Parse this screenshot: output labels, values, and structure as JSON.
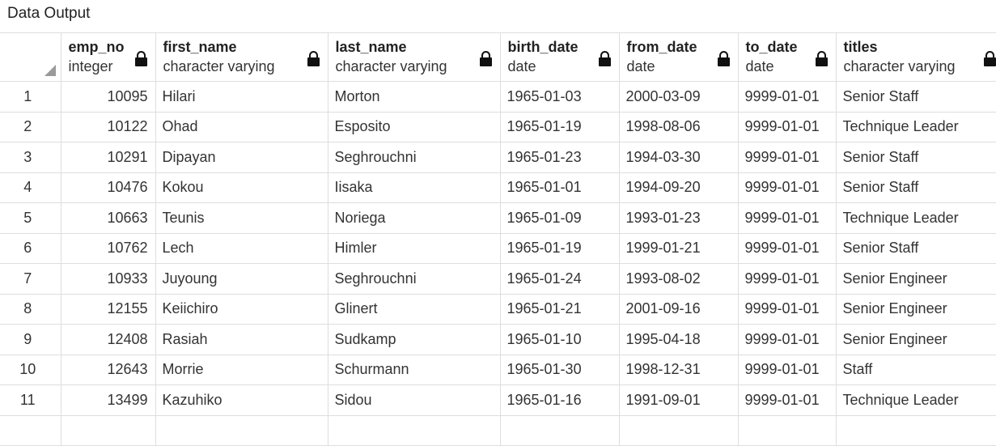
{
  "panel": {
    "tab_title": "Data Output"
  },
  "columns": [
    {
      "name": "emp_no",
      "type": "integer",
      "icon": "lock-icon"
    },
    {
      "name": "first_name",
      "type": "character varying",
      "icon": "lock-icon"
    },
    {
      "name": "last_name",
      "type": "character varying",
      "icon": "lock-icon"
    },
    {
      "name": "birth_date",
      "type": "date",
      "icon": "lock-icon"
    },
    {
      "name": "from_date",
      "type": "date",
      "icon": "lock-icon"
    },
    {
      "name": "to_date",
      "type": "date",
      "icon": "lock-icon"
    },
    {
      "name": "titles",
      "type": "character varying",
      "icon": "lock-icon"
    }
  ],
  "rows": [
    {
      "n": "1",
      "emp_no": "10095",
      "first_name": "Hilari",
      "last_name": "Morton",
      "birth_date": "1965-01-03",
      "from_date": "2000-03-09",
      "to_date": "9999-01-01",
      "titles": "Senior Staff"
    },
    {
      "n": "2",
      "emp_no": "10122",
      "first_name": "Ohad",
      "last_name": "Esposito",
      "birth_date": "1965-01-19",
      "from_date": "1998-08-06",
      "to_date": "9999-01-01",
      "titles": "Technique Leader"
    },
    {
      "n": "3",
      "emp_no": "10291",
      "first_name": "Dipayan",
      "last_name": "Seghrouchni",
      "birth_date": "1965-01-23",
      "from_date": "1994-03-30",
      "to_date": "9999-01-01",
      "titles": "Senior Staff"
    },
    {
      "n": "4",
      "emp_no": "10476",
      "first_name": "Kokou",
      "last_name": "Iisaka",
      "birth_date": "1965-01-01",
      "from_date": "1994-09-20",
      "to_date": "9999-01-01",
      "titles": "Senior Staff"
    },
    {
      "n": "5",
      "emp_no": "10663",
      "first_name": "Teunis",
      "last_name": "Noriega",
      "birth_date": "1965-01-09",
      "from_date": "1993-01-23",
      "to_date": "9999-01-01",
      "titles": "Technique Leader"
    },
    {
      "n": "6",
      "emp_no": "10762",
      "first_name": "Lech",
      "last_name": "Himler",
      "birth_date": "1965-01-19",
      "from_date": "1999-01-21",
      "to_date": "9999-01-01",
      "titles": "Senior Staff"
    },
    {
      "n": "7",
      "emp_no": "10933",
      "first_name": "Juyoung",
      "last_name": "Seghrouchni",
      "birth_date": "1965-01-24",
      "from_date": "1993-08-02",
      "to_date": "9999-01-01",
      "titles": "Senior Engineer"
    },
    {
      "n": "8",
      "emp_no": "12155",
      "first_name": "Keiichiro",
      "last_name": "Glinert",
      "birth_date": "1965-01-21",
      "from_date": "2001-09-16",
      "to_date": "9999-01-01",
      "titles": "Senior Engineer"
    },
    {
      "n": "9",
      "emp_no": "12408",
      "first_name": "Rasiah",
      "last_name": "Sudkamp",
      "birth_date": "1965-01-10",
      "from_date": "1995-04-18",
      "to_date": "9999-01-01",
      "titles": "Senior Engineer"
    },
    {
      "n": "10",
      "emp_no": "12643",
      "first_name": "Morrie",
      "last_name": "Schurmann",
      "birth_date": "1965-01-30",
      "from_date": "1998-12-31",
      "to_date": "9999-01-01",
      "titles": "Staff"
    },
    {
      "n": "11",
      "emp_no": "13499",
      "first_name": "Kazuhiko",
      "last_name": "Sidou",
      "birth_date": "1965-01-16",
      "from_date": "1991-09-01",
      "to_date": "9999-01-01",
      "titles": "Technique Leader"
    },
    {
      "n": "",
      "emp_no": "",
      "first_name": "",
      "last_name": "",
      "birth_date": "",
      "from_date": "",
      "to_date": "",
      "titles": ""
    }
  ]
}
